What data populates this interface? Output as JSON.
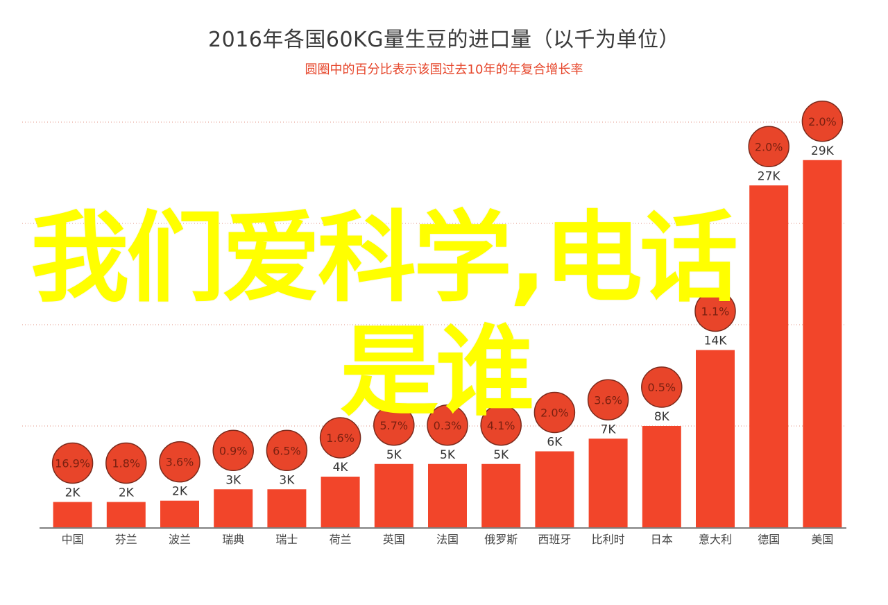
{
  "chart_data": {
    "type": "bar",
    "title": "2016年各国60KG量生豆的进口量（以千为单位）",
    "subtitle": "圆圈中的百分比表示该国过去10年的年复合增长率",
    "categories": [
      "中国",
      "芬兰",
      "波兰",
      "瑞典",
      "瑞士",
      "荷兰",
      "英国",
      "法国",
      "俄罗斯",
      "西班牙",
      "比利时",
      "日本",
      "意大利",
      "德国",
      "美国"
    ],
    "values": [
      2,
      2,
      2.1,
      3,
      3,
      4,
      5,
      5,
      5,
      6,
      7,
      8,
      14,
      27,
      29
    ],
    "value_labels": [
      "2K",
      "2K",
      "2K",
      "3K",
      "3K",
      "4K",
      "5K",
      "5K",
      "5K",
      "6K",
      "7K",
      "8K",
      "14K",
      "27K",
      "29K"
    ],
    "growth_labels": [
      "16.9%",
      "1.8%",
      "3.6%",
      "0.9%",
      "6.5%",
      "1.6%",
      "5.7%",
      "0.3%",
      "4.1%",
      "2.0%",
      "3.6%",
      "0.5%",
      "1.1%",
      "2.0%",
      "2.0%"
    ],
    "ylim": [
      0,
      32
    ],
    "grid": true,
    "colors": {
      "bar": "#f2452a",
      "circle": "#e8452a",
      "circle_text": "#ee4a2b",
      "axis_text": "#444444",
      "grid": "#e09080"
    }
  },
  "watermark": {
    "line1": "我们爱科学,电话",
    "line2": "是谁",
    "color": "#ffff00"
  }
}
